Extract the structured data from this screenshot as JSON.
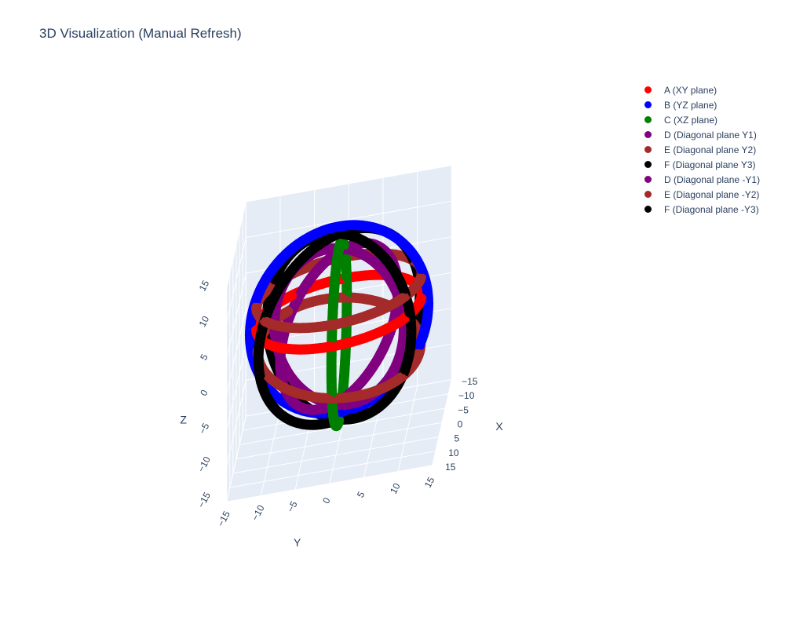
{
  "chart_data": {
    "type": "scatter",
    "mode": "3d-markers",
    "title": "3D Visualization (Manual Refresh)",
    "axes": {
      "x": {
        "label": "X",
        "range": [
          -15,
          15
        ],
        "ticks": [
          "−15",
          "−10",
          "−5",
          "0",
          "5",
          "10",
          "15"
        ]
      },
      "y": {
        "label": "Y",
        "range": [
          -15,
          15
        ],
        "ticks": [
          "−15",
          "−10",
          "−5",
          "0",
          "5",
          "10",
          "15"
        ]
      },
      "z": {
        "label": "Z",
        "range": [
          -15,
          15
        ],
        "ticks": [
          "−15",
          "−10",
          "−5",
          "0",
          "5",
          "10",
          "15"
        ]
      }
    },
    "grid": true,
    "legend_position": "top-right",
    "series": [
      {
        "name": "A (XY plane)",
        "color": "#ff0000",
        "shape": "circle",
        "radius": 12,
        "normal": [
          0,
          0,
          1
        ],
        "z_offset": 3
      },
      {
        "name": "B (YZ plane)",
        "color": "#0000ff",
        "shape": "circle",
        "radius": 13,
        "normal": [
          1,
          0,
          0
        ],
        "z_offset": 2
      },
      {
        "name": "C (XZ plane)",
        "color": "#008000",
        "shape": "circle",
        "radius": 12,
        "normal": [
          0,
          1,
          0
        ],
        "z_offset": 0
      },
      {
        "name": "D (Diagonal plane Y1)",
        "color": "#800080",
        "shape": "circle",
        "radius": 11,
        "normal": [
          1,
          1,
          1
        ],
        "z_offset": 1
      },
      {
        "name": "E (Diagonal plane Y2)",
        "color": "#a52a2a",
        "shape": "circle",
        "radius": 12,
        "normal": [
          0.2,
          0.2,
          1
        ],
        "z_offset": -2
      },
      {
        "name": "F (Diagonal plane Y3)",
        "color": "#000000",
        "shape": "circle",
        "radius": 13,
        "normal": [
          1,
          -0.6,
          0
        ],
        "z_offset": 1
      },
      {
        "name": "D (Diagonal plane -Y1)",
        "color": "#800080",
        "shape": "circle",
        "radius": 11,
        "normal": [
          1,
          -1,
          1
        ],
        "z_offset": 1
      },
      {
        "name": "E (Diagonal plane -Y2)",
        "color": "#a52a2a",
        "shape": "circle",
        "radius": 12,
        "normal": [
          0,
          0,
          1
        ],
        "z_offset": 6
      },
      {
        "name": "F (Diagonal plane -Y3)",
        "color": "#000000",
        "shape": "circle",
        "radius": 13,
        "normal": [
          1,
          0.6,
          0
        ],
        "z_offset": 1
      }
    ]
  }
}
